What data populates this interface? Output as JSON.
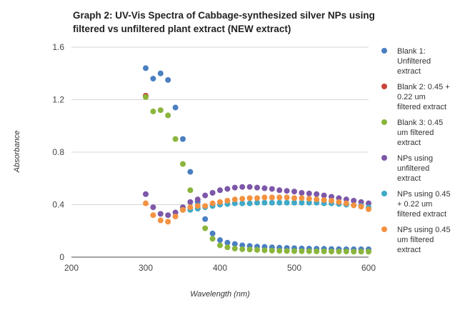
{
  "chart_data": {
    "type": "scatter",
    "title_lines": [
      "Graph 2: UV-Vis Spectra of Cabbage-synthesized silver NPs using",
      "filtered vs unfiltered plant extract (NEW extract)"
    ],
    "xlabel": "Wavelength (nm)",
    "ylabel": "Absorbance",
    "xlim": [
      200,
      600
    ],
    "ylim": [
      0,
      1.6
    ],
    "xticks": [
      200,
      300,
      400,
      500,
      600
    ],
    "yticks": [
      0,
      0.4,
      0.8,
      1.2,
      1.6
    ],
    "ytick_labels": [
      "0",
      "0.4",
      "0.8",
      "1.2",
      "1.6"
    ],
    "grid": "horizontal",
    "legend_position": "right",
    "series": [
      {
        "name": "Blank 1: Unfiltered extract",
        "legend_lines": [
          "Blank 1:",
          "Unfiltered",
          "extract"
        ],
        "color": "#4a7fc1",
        "x": [
          300,
          310,
          320,
          330,
          340,
          350,
          360,
          370,
          380,
          390,
          400,
          410,
          420,
          430,
          440,
          450,
          460,
          470,
          480,
          490,
          500,
          510,
          520,
          530,
          540,
          550,
          560,
          570,
          580,
          590,
          600
        ],
        "y": [
          1.44,
          1.36,
          1.4,
          1.35,
          1.14,
          0.9,
          0.65,
          0.42,
          0.29,
          0.18,
          0.13,
          0.11,
          0.1,
          0.09,
          0.085,
          0.08,
          0.078,
          0.075,
          0.072,
          0.07,
          0.068,
          0.066,
          0.065,
          0.064,
          0.063,
          0.062,
          0.061,
          0.06,
          0.06,
          0.06,
          0.06
        ]
      },
      {
        "name": "Blank 2: 0.45 + 0.22 um filtered extract",
        "legend_lines": [
          "Blank 2: 0.45 +",
          "0.22 um",
          "filtered extract"
        ],
        "color": "#c8433a",
        "x": [
          300
        ],
        "y": [
          1.23
        ]
      },
      {
        "name": "Blank 3: 0.45 um filtered extract",
        "legend_lines": [
          "Blank 3: 0.45",
          "um filtered",
          "extract"
        ],
        "color": "#8ab53c",
        "x": [
          300,
          310,
          320,
          330,
          340,
          350,
          360,
          370,
          380,
          390,
          400,
          410,
          420,
          430,
          440,
          450,
          460,
          470,
          480,
          490,
          500,
          510,
          520,
          530,
          540,
          550,
          560,
          570,
          580,
          590,
          600
        ],
        "y": [
          1.22,
          1.11,
          1.12,
          1.08,
          0.9,
          0.71,
          0.51,
          0.37,
          0.22,
          0.14,
          0.09,
          0.075,
          0.065,
          0.06,
          0.058,
          0.055,
          0.052,
          0.05,
          0.048,
          0.047,
          0.046,
          0.045,
          0.045,
          0.044,
          0.044,
          0.043,
          0.043,
          0.043,
          0.042,
          0.042,
          0.042
        ]
      },
      {
        "name": "NPs using unfiltered extract",
        "legend_lines": [
          "NPs using",
          "unfiltered",
          "extract"
        ],
        "color": "#7d57a8",
        "x": [
          300,
          310,
          320,
          330,
          340,
          350,
          360,
          370,
          380,
          390,
          400,
          410,
          420,
          430,
          440,
          450,
          460,
          470,
          480,
          490,
          500,
          510,
          520,
          530,
          540,
          550,
          560,
          570,
          580,
          590,
          600
        ],
        "y": [
          0.48,
          0.38,
          0.33,
          0.32,
          0.34,
          0.38,
          0.42,
          0.44,
          0.47,
          0.49,
          0.51,
          0.52,
          0.53,
          0.535,
          0.535,
          0.53,
          0.525,
          0.52,
          0.51,
          0.505,
          0.5,
          0.49,
          0.485,
          0.48,
          0.47,
          0.46,
          0.45,
          0.44,
          0.43,
          0.42,
          0.41
        ]
      },
      {
        "name": "NPs using 0.45 + 0.22 um filtered extract",
        "legend_lines": [
          "NPs using 0.45",
          "+ 0.22 um",
          "filtered extract"
        ],
        "color": "#3fa9c8",
        "x": [
          350,
          360,
          370,
          380,
          390,
          400,
          410,
          420,
          430,
          440,
          450,
          460,
          470,
          480,
          490,
          500,
          510,
          520,
          530,
          540,
          550,
          560,
          570,
          580,
          590,
          600
        ],
        "y": [
          0.36,
          0.36,
          0.37,
          0.38,
          0.39,
          0.4,
          0.405,
          0.41,
          0.41,
          0.41,
          0.415,
          0.415,
          0.415,
          0.415,
          0.415,
          0.415,
          0.415,
          0.415,
          0.415,
          0.41,
          0.41,
          0.405,
          0.4,
          0.395,
          0.39,
          0.38
        ]
      },
      {
        "name": "NPs using 0.45 um filtered extract",
        "legend_lines": [
          "NPs using 0.45",
          "um filtered",
          "extract"
        ],
        "color": "#f39240",
        "x": [
          300,
          310,
          320,
          330,
          340,
          350,
          360,
          370,
          380,
          390,
          400,
          410,
          420,
          430,
          440,
          450,
          460,
          470,
          480,
          490,
          500,
          510,
          520,
          530,
          540,
          550,
          560,
          570,
          580,
          590,
          600
        ],
        "y": [
          0.41,
          0.32,
          0.28,
          0.27,
          0.31,
          0.36,
          0.38,
          0.39,
          0.39,
          0.41,
          0.42,
          0.43,
          0.44,
          0.445,
          0.45,
          0.45,
          0.455,
          0.455,
          0.455,
          0.455,
          0.45,
          0.45,
          0.445,
          0.44,
          0.435,
          0.43,
          0.42,
          0.41,
          0.395,
          0.385,
          0.365
        ]
      }
    ]
  }
}
